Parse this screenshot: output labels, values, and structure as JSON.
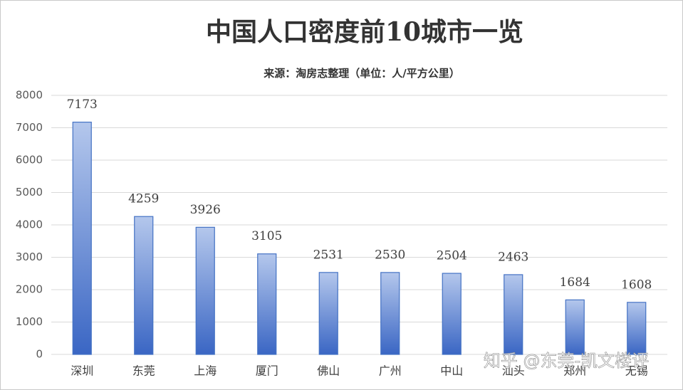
{
  "chart_data": {
    "type": "bar",
    "title": "中国人口密度前10城市一览",
    "subtitle": "来源：淘房志整理（单位：人/平方公里）",
    "categories": [
      "深圳",
      "东莞",
      "上海",
      "厦门",
      "佛山",
      "广州",
      "中山",
      "汕头",
      "郑州",
      "无锡"
    ],
    "values": [
      7173,
      4259,
      3926,
      3105,
      2531,
      2530,
      2504,
      2463,
      1684,
      1608
    ],
    "color": "#4472c4",
    "ylim": [
      0,
      8000
    ],
    "yticks": [
      0,
      1000,
      2000,
      3000,
      4000,
      5000,
      6000,
      7000,
      8000
    ],
    "grid": true,
    "watermark": "知乎 @东莞-凯文楼评"
  }
}
